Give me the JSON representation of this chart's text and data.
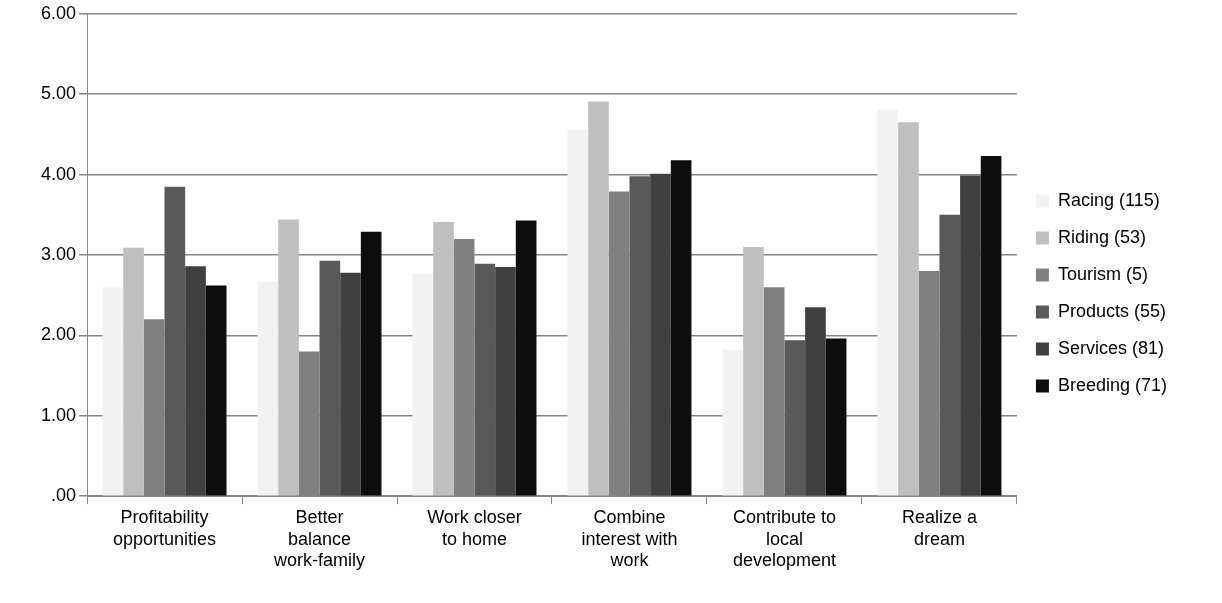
{
  "chart_data": {
    "type": "bar",
    "categories": [
      "Profitability opportunities",
      "Better balance work-family",
      "Work closer to home",
      "Combine interest with work",
      "Contribute to local development",
      "Realize a dream"
    ],
    "series": [
      {
        "name": "Racing (115)",
        "color": "#f2f2f2",
        "values": [
          2.6,
          2.67,
          2.77,
          4.56,
          1.82,
          4.81
        ]
      },
      {
        "name": "Riding (53)",
        "color": "#bfbfbf",
        "values": [
          3.09,
          3.44,
          3.41,
          4.91,
          3.1,
          4.65
        ]
      },
      {
        "name": "Tourism (5)",
        "color": "#808080",
        "values": [
          2.2,
          1.8,
          3.2,
          3.79,
          2.6,
          2.8
        ]
      },
      {
        "name": "Products (55)",
        "color": "#595959",
        "values": [
          3.85,
          2.93,
          2.89,
          3.98,
          1.94,
          3.5
        ]
      },
      {
        "name": "Services (81)",
        "color": "#404040",
        "values": [
          2.86,
          2.78,
          2.85,
          4.01,
          2.35,
          3.99
        ]
      },
      {
        "name": "Breeding (71)",
        "color": "#0d0d0d",
        "values": [
          2.62,
          3.29,
          3.43,
          4.18,
          1.96,
          4.23
        ]
      }
    ],
    "ylim": [
      0,
      6
    ],
    "yticks": [
      {
        "value": 0,
        "label": ".00"
      },
      {
        "value": 1,
        "label": "1.00"
      },
      {
        "value": 2,
        "label": "2.00"
      },
      {
        "value": 3,
        "label": "3.00"
      },
      {
        "value": 4,
        "label": "4.00"
      },
      {
        "value": 5,
        "label": "5.00"
      },
      {
        "value": 6,
        "label": "6.00"
      }
    ],
    "grid": "y",
    "legend": "right"
  }
}
